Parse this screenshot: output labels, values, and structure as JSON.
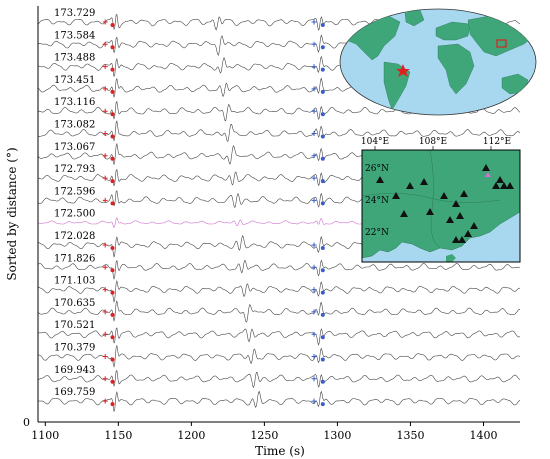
{
  "chart_data": {
    "type": "line",
    "title": "",
    "xlabel": "Time (s)",
    "ylabel": "Sorted by distance (°)",
    "xlim": [
      1095,
      1425
    ],
    "x_ticks": [
      1100,
      1150,
      1200,
      1250,
      1300,
      1350,
      1400
    ],
    "y_ticks": [
      0
    ],
    "series_labels": [
      "173.729",
      "173.584",
      "173.488",
      "173.451",
      "173.116",
      "173.082",
      "173.067",
      "172.793",
      "172.596",
      "172.500",
      "172.028",
      "171.826",
      "171.103",
      "170.635",
      "170.521",
      "170.379",
      "169.943",
      "169.759"
    ],
    "highlighted_trace": "172.500",
    "trace_color": "#444444",
    "highlight_color": "#d070d0",
    "pick_red_plus_time": 1141,
    "pick_red_dot_time": 1146,
    "pick_blue_plus_time": 1284,
    "pick_blue_dot_time": 1290,
    "grid": false
  },
  "inset_world_map": {
    "ocean_color": "#a8d8f0",
    "land_color": "#3fa67a",
    "marker_color": "#e02020"
  },
  "inset_region_map": {
    "lon_labels": [
      "104°E",
      "108°E",
      "112°E"
    ],
    "lat_labels": [
      "26°N",
      "24°N",
      "22°N"
    ],
    "land_color": "#3fa67a",
    "highlight_station_color": "#d070d0"
  }
}
